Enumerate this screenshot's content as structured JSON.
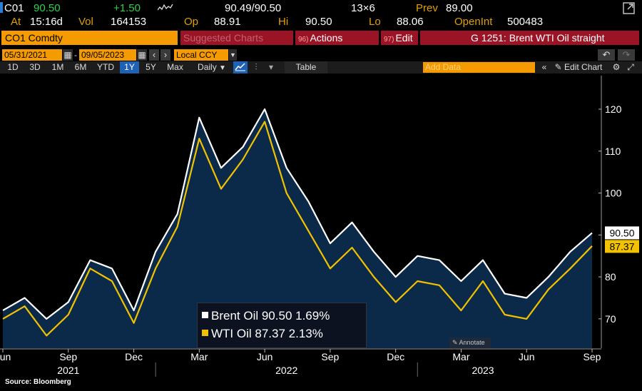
{
  "quote": {
    "ticker": "C01",
    "last": "90.50",
    "change": "+1.50",
    "bid_ask": "90.49/90.50",
    "size": "13×6",
    "prev_label": "Prev",
    "prev": "89.00",
    "at_label": "At",
    "time": "15:16d",
    "vol_label": "Vol",
    "vol": "164153",
    "op_label": "Op",
    "op": "88.91",
    "hi_label": "Hi",
    "hi": "90.50",
    "lo_label": "Lo",
    "lo": "88.06",
    "oi_label": "OpenInt",
    "oi": "500483"
  },
  "toolbar": {
    "security": "CO1 Comdty",
    "suggested": "Suggested Charts",
    "actions_num": "96)",
    "actions": "Actions",
    "edit_num": "97)",
    "edit": "Edit",
    "chart_title": "G 1251: Brent WTI Oil straight"
  },
  "dates": {
    "start": "05/31/2021",
    "end": "09/05/2023",
    "currency": "Local CCY"
  },
  "ranges": [
    "1D",
    "3D",
    "1M",
    "6M",
    "YTD",
    "1Y",
    "5Y",
    "Max"
  ],
  "active_range": "1Y",
  "controls": {
    "frequency": "Daily",
    "table": "Table",
    "add_data": "Add Data",
    "edit_chart": "Edit Chart"
  },
  "legend": {
    "brent": "Brent Oil 90.50  1.69%",
    "wti": "WTI Oil    87.37  2.13%"
  },
  "annotate": "Annotate",
  "source": "Source: Bloomberg",
  "colors": {
    "brent": "#ffffff",
    "wti": "#f2c200",
    "area": "#0b2a4a",
    "accent": "#f59a00"
  },
  "chart_data": {
    "type": "line",
    "x": [
      "2021-06",
      "2021-07",
      "2021-08",
      "2021-09",
      "2021-10",
      "2021-11",
      "2021-12",
      "2022-01",
      "2022-02",
      "2022-03",
      "2022-04",
      "2022-05",
      "2022-06",
      "2022-07",
      "2022-08",
      "2022-09",
      "2022-10",
      "2022-11",
      "2022-12",
      "2023-01",
      "2023-02",
      "2023-03",
      "2023-04",
      "2023-05",
      "2023-06",
      "2023-07",
      "2023-08",
      "2023-09"
    ],
    "series": [
      {
        "name": "Brent Oil",
        "values": [
          72,
          75,
          70,
          74,
          84,
          82,
          72,
          86,
          95,
          118,
          106,
          111,
          120,
          106,
          98,
          88,
          93,
          86,
          80,
          85,
          84,
          79,
          84,
          76,
          75,
          80,
          86,
          90.5
        ]
      },
      {
        "name": "WTI Oil",
        "values": [
          70,
          73,
          66,
          71,
          82,
          79,
          69,
          82,
          92,
          113,
          101,
          108,
          117,
          100,
          91,
          82,
          87,
          80,
          74,
          79,
          78,
          72,
          79,
          71,
          70,
          77,
          82,
          87.37
        ]
      }
    ],
    "last_labels": [
      "90.50",
      "87.37"
    ],
    "yticks": [
      70,
      80,
      90,
      100,
      110,
      120
    ],
    "ylim": [
      63,
      128
    ],
    "xtick_labels": [
      "Jun",
      "Sep",
      "Dec",
      "Mar",
      "Jun",
      "Sep",
      "Dec",
      "Mar",
      "Jun",
      "Sep"
    ],
    "xtick_months": [
      "2021-06",
      "2021-09",
      "2021-12",
      "2022-03",
      "2022-06",
      "2022-09",
      "2022-12",
      "2023-03",
      "2023-06",
      "2023-09"
    ],
    "year_labels": [
      "2021",
      "2022",
      "2023"
    ],
    "year_label_months": [
      "2021-09",
      "2022-07",
      "2023-04"
    ],
    "year_divider_months": [
      "2022-01",
      "2023-01"
    ],
    "grid": false,
    "legend": "bottom-center"
  }
}
